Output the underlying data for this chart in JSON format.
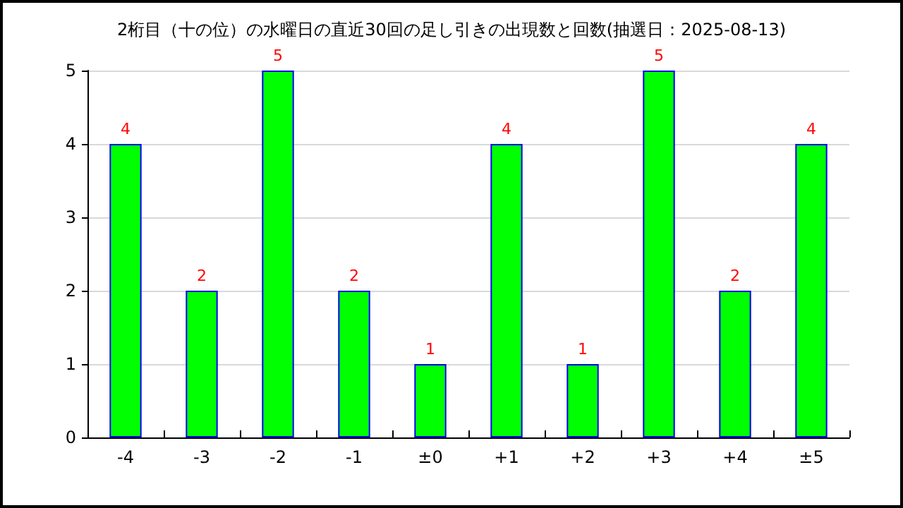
{
  "chart_data": {
    "type": "bar",
    "title": "2桁目（十の位）の水曜日の直近30回の足し引きの出現数と回数(抽選日：2025-08-13)",
    "categories": [
      "-4",
      "-3",
      "-2",
      "-1",
      "±0",
      "+1",
      "+2",
      "+3",
      "+4",
      "±5"
    ],
    "values": [
      4,
      2,
      5,
      2,
      1,
      4,
      1,
      5,
      2,
      4
    ],
    "color": "#00ff00",
    "ylim": [
      0,
      5
    ],
    "yticks": [
      0,
      1,
      2,
      3,
      4,
      5
    ],
    "grid": "y",
    "data_labels": true
  }
}
